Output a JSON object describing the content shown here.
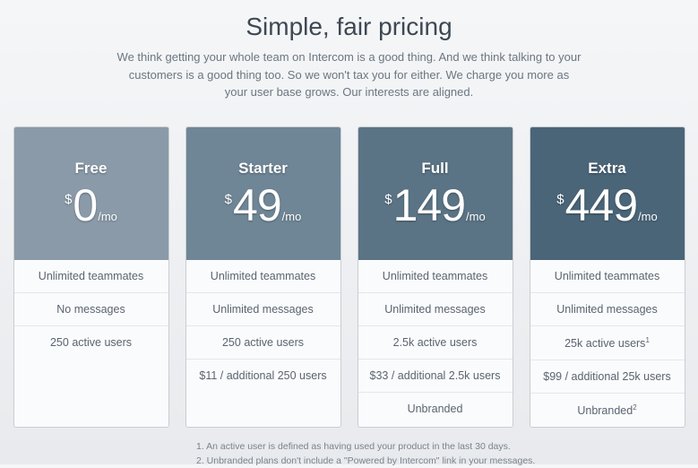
{
  "heading": "Simple, fair pricing",
  "subtext": "We think getting your whole team on Intercom is a good thing. And we think talking to your customers is a good thing too. So we won't tax you for either. We charge you more as your user base grows. Our interests are aligned.",
  "currency": "$",
  "per": "/mo",
  "plans": [
    {
      "name": "Free",
      "amount": "0",
      "header_bg": "#8a9aa8",
      "features": [
        {
          "text": "Unlimited teammates"
        },
        {
          "text": "No messages"
        },
        {
          "text": "250 active users"
        }
      ]
    },
    {
      "name": "Starter",
      "amount": "49",
      "header_bg": "#6f8696",
      "features": [
        {
          "text": "Unlimited teammates"
        },
        {
          "text": "Unlimited messages"
        },
        {
          "text": "250 active users"
        },
        {
          "text": "$11 / additional 250 users"
        }
      ]
    },
    {
      "name": "Full",
      "amount": "149",
      "header_bg": "#5a7485",
      "features": [
        {
          "text": "Unlimited teammates"
        },
        {
          "text": "Unlimited messages"
        },
        {
          "text": "2.5k active users"
        },
        {
          "text": "$33 / additional 2.5k users"
        },
        {
          "text": "Unbranded"
        }
      ]
    },
    {
      "name": "Extra",
      "amount": "449",
      "header_bg": "#4a6578",
      "features": [
        {
          "text": "Unlimited teammates"
        },
        {
          "text": "Unlimited messages"
        },
        {
          "text": "25k active users",
          "sup": "1"
        },
        {
          "text": "$99 / additional 25k users"
        },
        {
          "text": "Unbranded",
          "sup": "2"
        }
      ]
    }
  ],
  "footnotes": [
    "1. An active user is defined as having used your product in the last 30 days.",
    "2. Unbranded plans don't include a \"Powered by Intercom\" link in your messages."
  ]
}
